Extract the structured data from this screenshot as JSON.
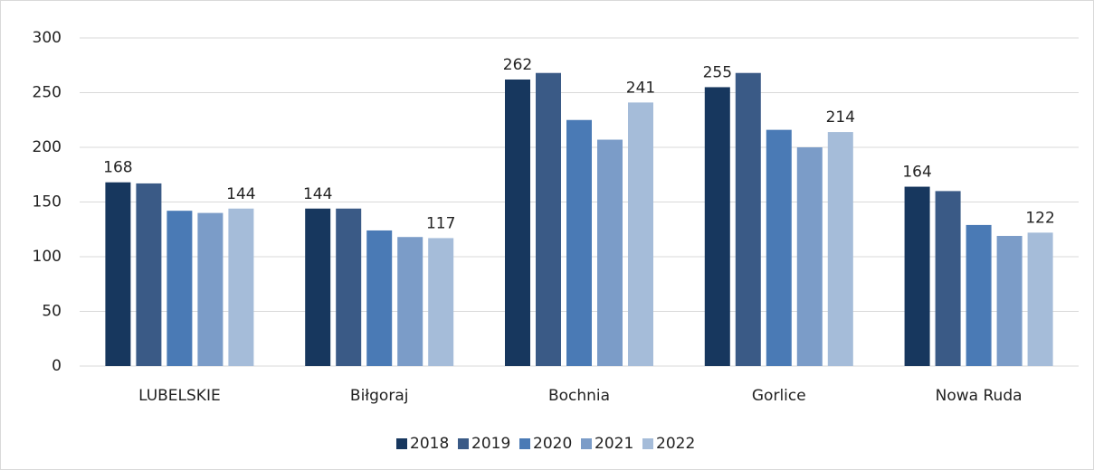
{
  "chart_data": {
    "type": "bar",
    "categories": [
      "LUBELSKIE",
      "Biłgoraj",
      "Bochnia",
      "Gorlice",
      "Nowa Ruda"
    ],
    "series": [
      {
        "name": "2018",
        "color": "#17375e",
        "values": [
          168,
          144,
          262,
          255,
          164
        ],
        "data_labels": true
      },
      {
        "name": "2019",
        "color": "#3a5a86",
        "values": [
          167,
          144,
          268,
          268,
          160
        ],
        "data_labels": false
      },
      {
        "name": "2020",
        "color": "#4a7ab5",
        "values": [
          142,
          124,
          225,
          216,
          129
        ],
        "data_labels": false
      },
      {
        "name": "2021",
        "color": "#7b9cc8",
        "values": [
          140,
          118,
          207,
          200,
          119
        ],
        "data_labels": false
      },
      {
        "name": "2022",
        "color": "#a5bcd9",
        "values": [
          144,
          117,
          241,
          214,
          122
        ],
        "data_labels": true
      }
    ],
    "ylim": [
      0,
      300
    ],
    "yticks": [
      0,
      50,
      100,
      150,
      200,
      250,
      300
    ],
    "grid": true,
    "legend": "bottom"
  }
}
